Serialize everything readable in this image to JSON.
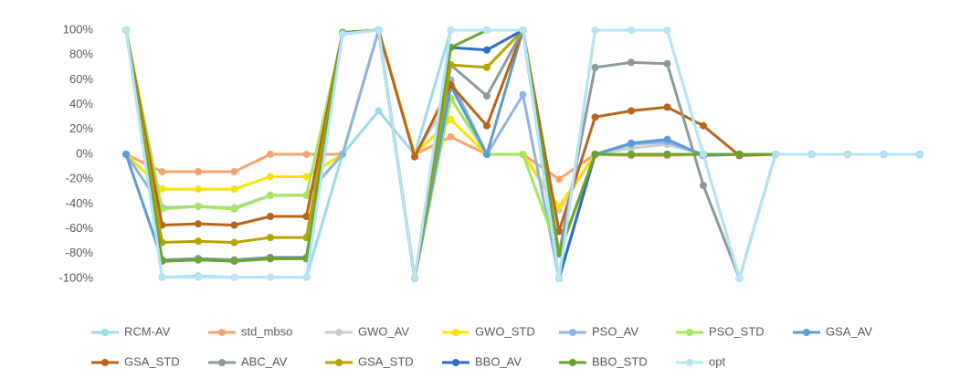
{
  "chart_data": {
    "type": "line",
    "categories": [
      null,
      null,
      null,
      null,
      null,
      null,
      null,
      null,
      null,
      null,
      null,
      null,
      null,
      null,
      null,
      null,
      null,
      null,
      null,
      null,
      null,
      null,
      null
    ],
    "ylim": [
      -100,
      100
    ],
    "yticks": [
      {
        "value": -100,
        "label": "-100%"
      },
      {
        "value": -80,
        "label": "-80%"
      },
      {
        "value": -60,
        "label": "-60%"
      },
      {
        "value": -40,
        "label": "-40%"
      },
      {
        "value": -20,
        "label": "-20%"
      },
      {
        "value": 0,
        "label": "0%"
      },
      {
        "value": 20,
        "label": "20%"
      },
      {
        "value": 40,
        "label": "40%"
      },
      {
        "value": 60,
        "label": "60%"
      },
      {
        "value": 80,
        "label": "80%"
      },
      {
        "value": 100,
        "label": "100%"
      }
    ],
    "grid": false,
    "legend": "bottom",
    "series": [
      {
        "name": "RCM-AV",
        "color": "#9dd9ef",
        "values": [
          100,
          -99,
          -98,
          -99,
          -99,
          -99,
          0,
          35,
          0,
          100,
          100,
          100,
          -100,
          100,
          100,
          100,
          0,
          -100,
          0,
          0,
          0,
          0,
          0
        ]
      },
      {
        "name": "std_mbso",
        "color": "#f4a56c",
        "values": [
          0,
          -14,
          -14,
          -14,
          0,
          0,
          0,
          100,
          0,
          14,
          0,
          0,
          -20,
          0,
          -1,
          -1,
          0,
          0,
          0,
          0,
          0,
          0,
          0
        ]
      },
      {
        "name": "GWO_AV",
        "color": "#c8cfcf",
        "values": [
          0,
          -43,
          -42,
          -43,
          -33,
          -33,
          0,
          100,
          0,
          45,
          0,
          0,
          -45,
          0,
          5,
          8,
          0,
          0,
          0,
          0,
          0,
          0,
          0
        ]
      },
      {
        "name": "GWO_STD",
        "color": "#ffe100",
        "values": [
          0,
          -28,
          -28,
          -28,
          -18,
          -18,
          0,
          100,
          0,
          28,
          0,
          0,
          -42,
          0,
          0,
          0,
          0,
          0,
          0,
          0,
          0,
          0,
          0
        ]
      },
      {
        "name": "PSO_AV",
        "color": "#8eb4e3",
        "values": [
          0,
          -43,
          -42,
          -44,
          -33,
          -33,
          0,
          100,
          -100,
          60,
          0,
          48,
          -100,
          0,
          8,
          10,
          0,
          0,
          0,
          0,
          0,
          0,
          0
        ]
      },
      {
        "name": "PSO_STD",
        "color": "#a6e65a",
        "values": [
          100,
          -44,
          -42,
          -44,
          -33,
          -33,
          97,
          100,
          -100,
          45,
          0,
          0,
          -80,
          0,
          0,
          0,
          0,
          0,
          0,
          0,
          0,
          0,
          0
        ]
      },
      {
        "name": "GSA_AV",
        "color": "#5b9bd5",
        "values": [
          0,
          -85,
          -84,
          -85,
          -83,
          -83,
          97,
          100,
          -100,
          55,
          0,
          100,
          -100,
          0,
          9,
          12,
          -1,
          0,
          0,
          0,
          0,
          0,
          0
        ]
      },
      {
        "name": "GSA_STD",
        "color": "#b8651b",
        "values": [
          100,
          -57,
          -56,
          -57,
          -50,
          -50,
          98,
          100,
          -2,
          56,
          23,
          100,
          -62,
          30,
          35,
          38,
          23,
          -1,
          0,
          0,
          0,
          0,
          0
        ]
      },
      {
        "name": "ABC_AV",
        "color": "#8c9a9b",
        "values": [
          100,
          -85,
          -84,
          -85,
          -83,
          -83,
          98,
          100,
          -100,
          72,
          47,
          100,
          -80,
          70,
          74,
          73,
          -25,
          -100,
          0,
          0,
          0,
          0,
          0
        ]
      },
      {
        "name": "GSA_STD",
        "color": "#b5a300",
        "values": [
          100,
          -71,
          -70,
          -71,
          -67,
          -67,
          98,
          100,
          -100,
          72,
          70,
          100,
          -80,
          0,
          0,
          0,
          0,
          0,
          0,
          0,
          0,
          0,
          0
        ]
      },
      {
        "name": "BBO_AV",
        "color": "#2e6fc4",
        "values": [
          100,
          -86,
          -85,
          -86,
          -84,
          -84,
          98,
          100,
          -100,
          86,
          84,
          100,
          -100,
          0,
          0,
          0,
          0,
          0,
          0,
          0,
          0,
          0,
          0
        ]
      },
      {
        "name": "BBO_STD",
        "color": "#6aa52e",
        "values": [
          100,
          -86,
          -85,
          -86,
          -84,
          -84,
          98,
          100,
          -100,
          86,
          100,
          100,
          -80,
          0,
          0,
          0,
          0,
          0,
          0,
          0,
          0,
          0,
          0
        ]
      },
      {
        "name": "opt",
        "color": "#b4e4f6",
        "values": [
          100,
          -99,
          -99,
          -99,
          -99,
          -99,
          97,
          100,
          -100,
          100,
          100,
          100,
          -100,
          100,
          100,
          100,
          0,
          -100,
          0,
          0,
          0,
          0,
          0
        ]
      }
    ]
  }
}
